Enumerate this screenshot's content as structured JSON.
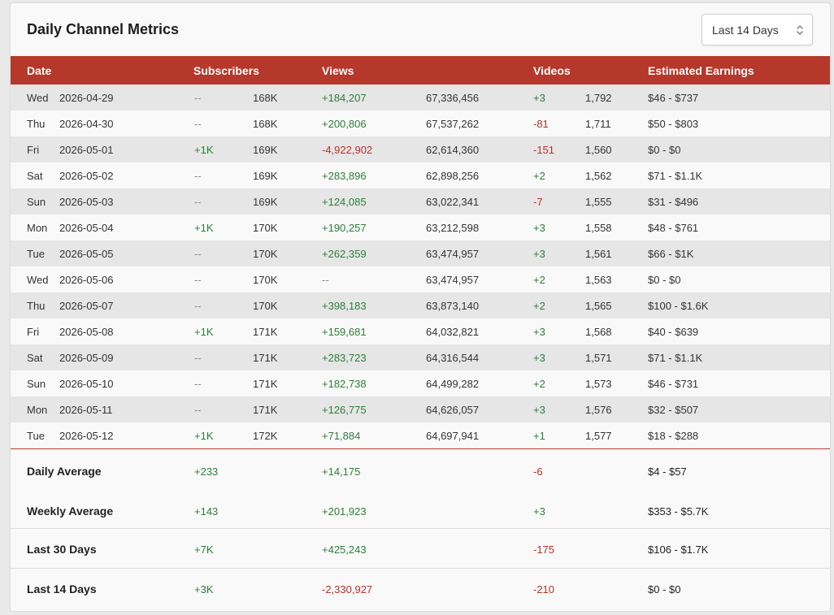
{
  "header": {
    "title": "Daily Channel Metrics",
    "range_select": "Last 14 Days"
  },
  "columns": {
    "date": "Date",
    "subscribers": "Subscribers",
    "views": "Views",
    "videos": "Videos",
    "earnings": "Estimated Earnings"
  },
  "rows": [
    {
      "day": "Wed",
      "date": "2026-04-29",
      "sub_delta": "--",
      "sub_total": "168K",
      "views_delta": "+184,207",
      "views_total": "67,336,456",
      "videos_delta": "+3",
      "videos_total": "1,792",
      "earnings": "$46 - $737"
    },
    {
      "day": "Thu",
      "date": "2026-04-30",
      "sub_delta": "--",
      "sub_total": "168K",
      "views_delta": "+200,806",
      "views_total": "67,537,262",
      "videos_delta": "-81",
      "videos_total": "1,711",
      "earnings": "$50 - $803"
    },
    {
      "day": "Fri",
      "date": "2026-05-01",
      "sub_delta": "+1K",
      "sub_total": "169K",
      "views_delta": "-4,922,902",
      "views_total": "62,614,360",
      "videos_delta": "-151",
      "videos_total": "1,560",
      "earnings": "$0 - $0"
    },
    {
      "day": "Sat",
      "date": "2026-05-02",
      "sub_delta": "--",
      "sub_total": "169K",
      "views_delta": "+283,896",
      "views_total": "62,898,256",
      "videos_delta": "+2",
      "videos_total": "1,562",
      "earnings": "$71 - $1.1K"
    },
    {
      "day": "Sun",
      "date": "2026-05-03",
      "sub_delta": "--",
      "sub_total": "169K",
      "views_delta": "+124,085",
      "views_total": "63,022,341",
      "videos_delta": "-7",
      "videos_total": "1,555",
      "earnings": "$31 - $496"
    },
    {
      "day": "Mon",
      "date": "2026-05-04",
      "sub_delta": "+1K",
      "sub_total": "170K",
      "views_delta": "+190,257",
      "views_total": "63,212,598",
      "videos_delta": "+3",
      "videos_total": "1,558",
      "earnings": "$48 - $761"
    },
    {
      "day": "Tue",
      "date": "2026-05-05",
      "sub_delta": "--",
      "sub_total": "170K",
      "views_delta": "+262,359",
      "views_total": "63,474,957",
      "videos_delta": "+3",
      "videos_total": "1,561",
      "earnings": "$66 - $1K"
    },
    {
      "day": "Wed",
      "date": "2026-05-06",
      "sub_delta": "--",
      "sub_total": "170K",
      "views_delta": "--",
      "views_total": "63,474,957",
      "videos_delta": "+2",
      "videos_total": "1,563",
      "earnings": "$0 - $0"
    },
    {
      "day": "Thu",
      "date": "2026-05-07",
      "sub_delta": "--",
      "sub_total": "170K",
      "views_delta": "+398,183",
      "views_total": "63,873,140",
      "videos_delta": "+2",
      "videos_total": "1,565",
      "earnings": "$100 - $1.6K"
    },
    {
      "day": "Fri",
      "date": "2026-05-08",
      "sub_delta": "+1K",
      "sub_total": "171K",
      "views_delta": "+159,681",
      "views_total": "64,032,821",
      "videos_delta": "+3",
      "videos_total": "1,568",
      "earnings": "$40 - $639"
    },
    {
      "day": "Sat",
      "date": "2026-05-09",
      "sub_delta": "--",
      "sub_total": "171K",
      "views_delta": "+283,723",
      "views_total": "64,316,544",
      "videos_delta": "+3",
      "videos_total": "1,571",
      "earnings": "$71 - $1.1K"
    },
    {
      "day": "Sun",
      "date": "2026-05-10",
      "sub_delta": "--",
      "sub_total": "171K",
      "views_delta": "+182,738",
      "views_total": "64,499,282",
      "videos_delta": "+2",
      "videos_total": "1,573",
      "earnings": "$46 - $731"
    },
    {
      "day": "Mon",
      "date": "2026-05-11",
      "sub_delta": "--",
      "sub_total": "171K",
      "views_delta": "+126,775",
      "views_total": "64,626,057",
      "videos_delta": "+3",
      "videos_total": "1,576",
      "earnings": "$32 - $507"
    },
    {
      "day": "Tue",
      "date": "2026-05-12",
      "sub_delta": "+1K",
      "sub_total": "172K",
      "views_delta": "+71,884",
      "views_total": "64,697,941",
      "videos_delta": "+1",
      "videos_total": "1,577",
      "earnings": "$18 - $288"
    }
  ],
  "summary": [
    {
      "label": "Daily Average",
      "subscribers": "+233",
      "views": "+14,175",
      "videos": "-6",
      "earnings": "$4 - $57"
    },
    {
      "label": "Weekly Average",
      "subscribers": "+143",
      "views": "+201,923",
      "videos": "+3",
      "earnings": "$353 - $5.7K"
    },
    {
      "label": "Last 30 Days",
      "subscribers": "+7K",
      "views": "+425,243",
      "videos": "-175",
      "earnings": "$106 - $1.7K"
    },
    {
      "label": "Last 14 Days",
      "subscribers": "+3K",
      "views": "-2,330,927",
      "videos": "-210",
      "earnings": "$0 - $0"
    }
  ],
  "colors": {
    "header_bg": "#b5382b",
    "positive": "#2e7d3a",
    "negative": "#b5322b"
  }
}
